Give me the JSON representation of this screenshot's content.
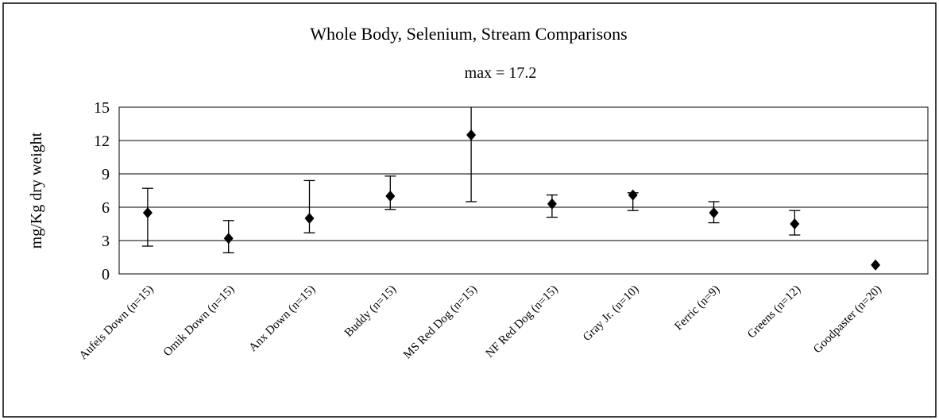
{
  "chart_data": {
    "type": "errorbar",
    "title": "Whole Body, Selenium, Stream Comparisons",
    "annotation": "max = 17.2",
    "y_label": "mg/Kg dry weight",
    "categories": [
      "Aufeis Down (n=15)",
      "Omik Down (n=15)",
      "Anx Down (n=15)",
      "Buddy (n=15)",
      "MS Red Dog (n=15)",
      "NF Red Dog (n=15)",
      "Gray Jr. (n=10)",
      "Ferric (n=9)",
      "Greens (n=12)",
      "Goodpaster (n=20)"
    ],
    "series": [
      {
        "color": "#000000",
        "values": [
          5.5,
          3.2,
          5.0,
          7.0,
          12.5,
          6.3,
          7.1,
          5.5,
          4.5,
          0.8
        ],
        "lower": [
          2.5,
          1.9,
          3.7,
          5.8,
          6.5,
          5.1,
          5.7,
          4.6,
          3.5,
          null
        ],
        "upper": [
          7.7,
          4.8,
          8.4,
          8.8,
          17.2,
          7.1,
          7.3,
          6.5,
          5.7,
          null
        ]
      }
    ],
    "ylim": [
      0,
      15
    ],
    "yticks": [
      0,
      3,
      6,
      9,
      12,
      15
    ],
    "grid": true
  }
}
